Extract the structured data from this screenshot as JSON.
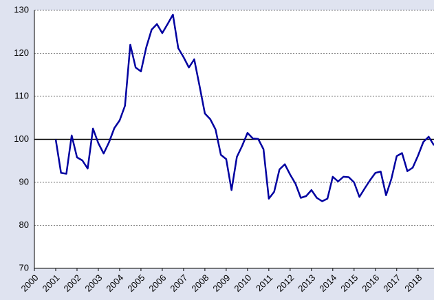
{
  "chart_data": {
    "type": "line",
    "x": [
      2001,
      2001.25,
      2001.5,
      2001.75,
      2002,
      2002.25,
      2002.5,
      2002.75,
      2003,
      2003.25,
      2003.5,
      2003.75,
      2004,
      2004.25,
      2004.5,
      2004.75,
      2005,
      2005.25,
      2005.5,
      2005.75,
      2006,
      2006.25,
      2006.5,
      2006.75,
      2007,
      2007.25,
      2007.5,
      2007.75,
      2008,
      2008.25,
      2008.5,
      2008.75,
      2009,
      2009.25,
      2009.5,
      2009.75,
      2010,
      2010.25,
      2010.5,
      2010.75,
      2011,
      2011.25,
      2011.5,
      2011.75,
      2012,
      2012.25,
      2012.5,
      2012.75,
      2013,
      2013.25,
      2013.5,
      2013.75,
      2014,
      2014.25,
      2014.5,
      2014.75,
      2015,
      2015.25,
      2015.5,
      2015.75,
      2016,
      2016.25,
      2016.5,
      2016.75,
      2017,
      2017.25,
      2017.5,
      2017.75,
      2018,
      2018.25,
      2018.5,
      2018.75
    ],
    "series": [
      {
        "color": "#0000a0",
        "values": [
          100,
          92.2,
          92,
          100.9,
          95.8,
          95.1,
          93.2,
          102.5,
          99.1,
          96.7,
          99.3,
          102.6,
          104.4,
          107.8,
          122,
          116.7,
          115.8,
          121.4,
          125.5,
          126.8,
          124.7,
          126.8,
          129,
          121.2,
          119.1,
          116.7,
          118.6,
          112.4,
          106,
          104.7,
          102.3,
          96.4,
          95.4,
          88.2,
          95.9,
          98.5,
          101.5,
          100.2,
          100.1,
          97.7,
          86.2,
          87.8,
          93,
          94.2,
          91.8,
          89.7,
          86.4,
          86.8,
          88.2,
          86.4,
          85.6,
          86.2,
          91.3,
          90.2,
          91.3,
          91.2,
          90,
          86.6,
          88.6,
          90.5,
          92.2,
          92.5,
          87,
          90.8,
          96.1,
          96.8,
          92.6,
          93.4,
          96.2,
          99.4,
          100.6,
          98.6
        ]
      }
    ],
    "reference_line": 100,
    "xlim": [
      2000,
      2018.75
    ],
    "xticks": [
      2000,
      2001,
      2002,
      2003,
      2004,
      2005,
      2006,
      2007,
      2008,
      2009,
      2010,
      2011,
      2012,
      2013,
      2014,
      2015,
      2016,
      2017,
      2018
    ],
    "ylim": [
      70,
      130
    ],
    "yticks": [
      70,
      80,
      90,
      100,
      110,
      120,
      130
    ],
    "grid": true
  }
}
